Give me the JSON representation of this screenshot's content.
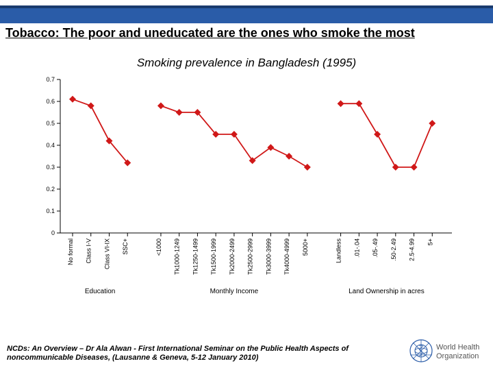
{
  "slide": {
    "title": "Tobacco: The poor and uneducated are the ones who smoke the most",
    "subtitle": "Smoking prevalence in Bangladesh (1995)",
    "footer_line1": "NCDs: An Overview – Dr Ala Alwan - First International Seminar on the Public Health Aspects of",
    "footer_line2": "noncommunicable Diseases, (Lausanne & Geneva, 5-12 January 2010)"
  },
  "logo": {
    "text_line1": "World Health",
    "text_line2": "Organization",
    "blue": "#2a5ca8",
    "gray": "#555555"
  },
  "top_bar": {
    "navy": "#1a3b6e",
    "blue": "#2a5ca8"
  },
  "chart": {
    "type": "line",
    "ylim": [
      0,
      0.7
    ],
    "ytick_step": 0.1,
    "y_labels": [
      "0",
      "0.1",
      "0.2",
      "0.3",
      "0.4",
      "0.5",
      "0.6",
      "0.7"
    ],
    "label_fontsize": 10,
    "tick_fontsize": 9,
    "background_color": "#ffffff",
    "axis_color": "#000000",
    "tick_color": "#000000",
    "line_color": "#d01818",
    "marker_color": "#d01818",
    "marker_size": 5,
    "line_width": 1.8,
    "groups": [
      {
        "label": "Education",
        "items": [
          {
            "x_label": "No formal",
            "y": 0.61
          },
          {
            "x_label": "Class I-V",
            "y": 0.58
          },
          {
            "x_label": "Class VI-IX",
            "y": 0.42
          },
          {
            "x_label": "SSC+",
            "y": 0.32
          }
        ]
      },
      {
        "label": "Monthly Income",
        "items": [
          {
            "x_label": "<1000",
            "y": 0.58
          },
          {
            "x_label": "Tk1000-1249",
            "y": 0.55
          },
          {
            "x_label": "Tk1250-1499",
            "y": 0.55
          },
          {
            "x_label": "Tk1500-1999",
            "y": 0.45
          },
          {
            "x_label": "Tk2000-2499",
            "y": 0.45
          },
          {
            "x_label": "Tk2500-2999",
            "y": 0.33
          },
          {
            "x_label": "Tk3000-3999",
            "y": 0.39
          },
          {
            "x_label": "Tk4000-4999",
            "y": 0.35
          },
          {
            "x_label": "5000+",
            "y": 0.3
          }
        ]
      },
      {
        "label": "Land Ownership in acres",
        "items": [
          {
            "x_label": "Landless",
            "y": 0.59
          },
          {
            "x_label": ".01-.04",
            "y": 0.59
          },
          {
            "x_label": ".05-.49",
            "y": 0.45
          },
          {
            "x_label": ".50-2.49",
            "y": 0.3
          },
          {
            "x_label": "2.5-4.99",
            "y": 0.3
          },
          {
            "x_label": "5+",
            "y": 0.5
          }
        ]
      }
    ]
  }
}
